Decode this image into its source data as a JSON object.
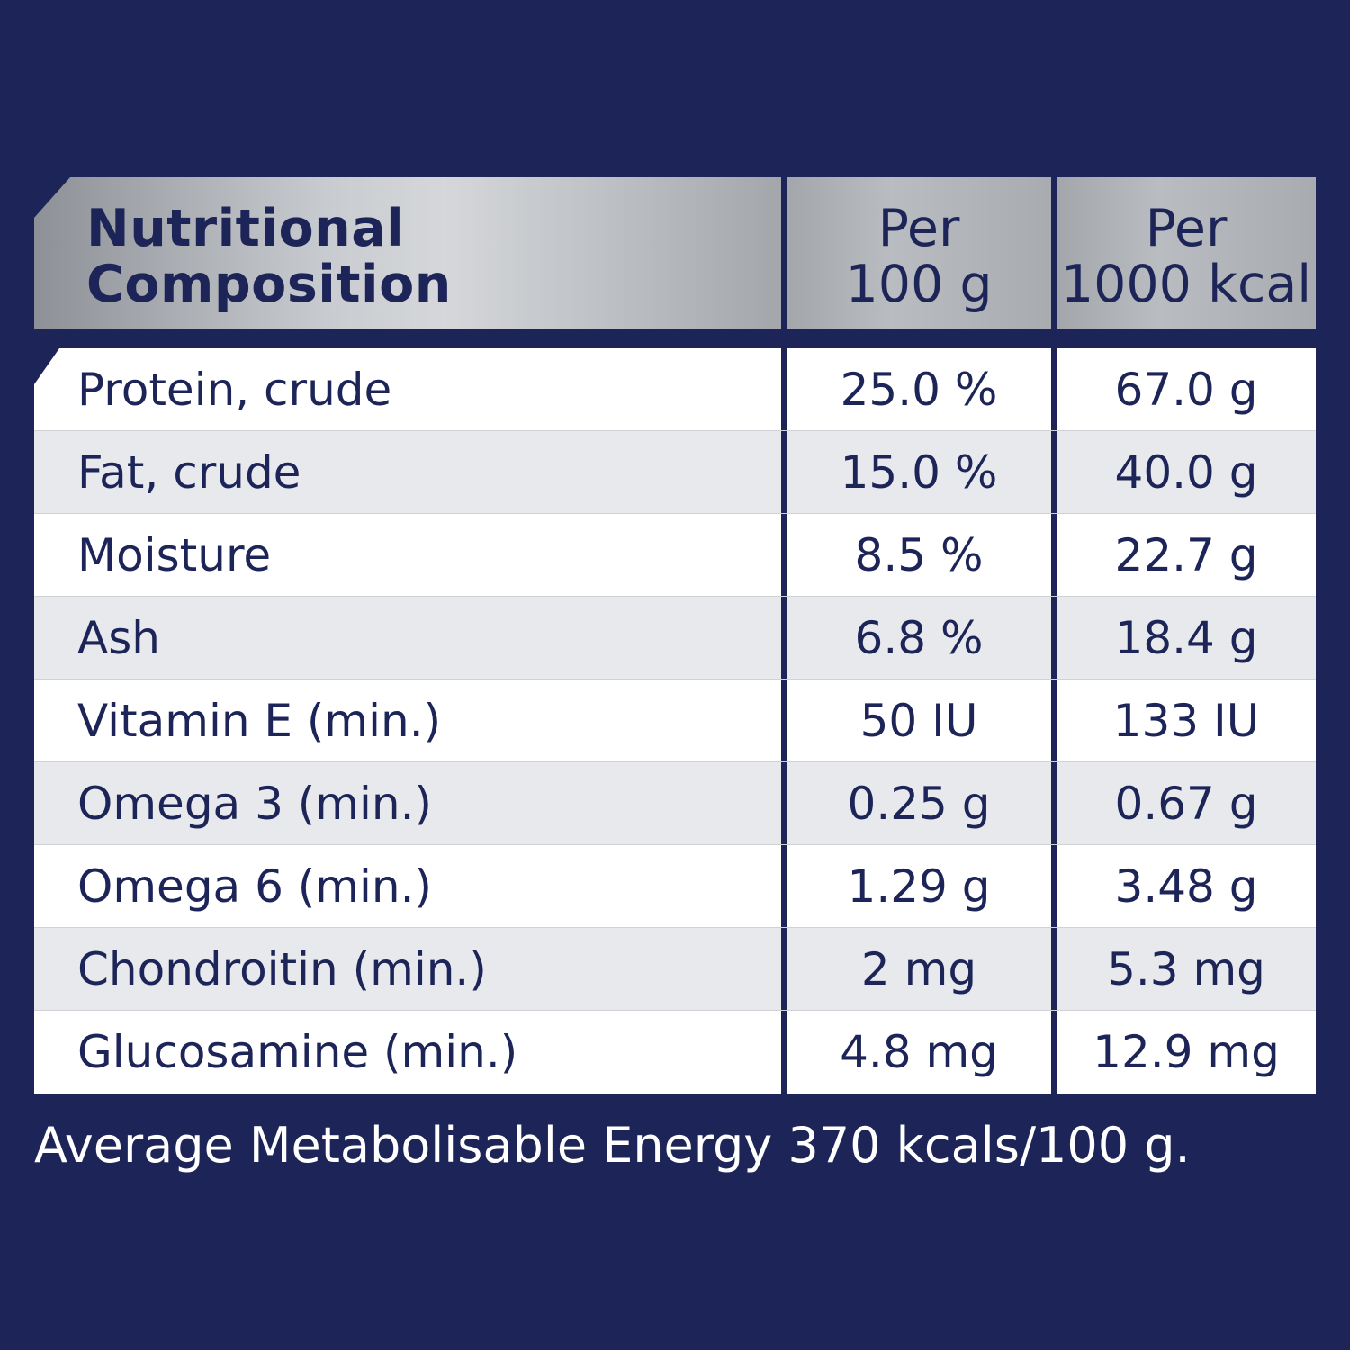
{
  "header": {
    "name_line1": "Nutritional",
    "name_line2": "Composition",
    "col1_line1": "Per",
    "col1_line2": "100 g",
    "col2_line1": "Per",
    "col2_line2": "1000 kcal"
  },
  "rows": [
    {
      "name": "Protein, crude",
      "per100g": "25.0 %",
      "per1000kcal": "67.0 g"
    },
    {
      "name": "Fat, crude",
      "per100g": "15.0 %",
      "per1000kcal": "40.0 g"
    },
    {
      "name": "Moisture",
      "per100g": "8.5 %",
      "per1000kcal": "22.7 g"
    },
    {
      "name": "Ash",
      "per100g": "6.8 %",
      "per1000kcal": "18.4 g"
    },
    {
      "name": "Vitamin E (min.)",
      "per100g": "50 IU",
      "per1000kcal": "133 IU"
    },
    {
      "name": "Omega 3 (min.)",
      "per100g": "0.25 g",
      "per1000kcal": "0.67 g"
    },
    {
      "name": "Omega 6 (min.)",
      "per100g": "1.29 g",
      "per1000kcal": "3.48 g"
    },
    {
      "name": "Chondroitin (min.)",
      "per100g": "2 mg",
      "per1000kcal": "5.3 mg"
    },
    {
      "name": "Glucosamine (min.)",
      "per100g": "4.8 mg",
      "per1000kcal": "12.9 mg"
    }
  ],
  "footnote": "Average Metabolisable Energy 370 kcals/100 g.",
  "colors": {
    "background": "#1d2558",
    "text_dark": "#1d2558",
    "row_white": "#ffffff",
    "row_alt": "#e8e9ed"
  }
}
